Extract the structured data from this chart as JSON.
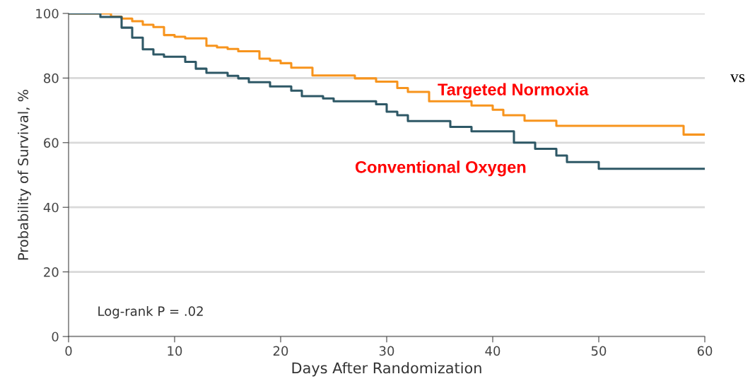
{
  "chart_data": {
    "type": "step",
    "xlabel": "Days After Randomization",
    "ylabel": "Probability of Survival, %",
    "xlim": [
      0,
      60
    ],
    "ylim": [
      0,
      100
    ],
    "xticks": [
      0,
      10,
      20,
      30,
      40,
      50,
      60
    ],
    "yticks": [
      0,
      20,
      40,
      60,
      80,
      100
    ],
    "grid": "y",
    "legend": false,
    "series": [
      {
        "name": "Targeted Normoxia",
        "color": "#f7941d",
        "x": [
          0,
          4,
          5,
          6,
          7,
          8,
          9,
          10,
          11,
          13,
          14,
          15,
          16,
          18,
          19,
          20,
          21,
          23,
          27,
          29,
          31,
          32,
          34,
          38,
          40,
          41,
          43,
          46,
          58,
          60
        ],
        "values": [
          100,
          99,
          98.4,
          97.6,
          96.5,
          95.8,
          93.3,
          92.8,
          92.3,
          90,
          89.5,
          89,
          88.3,
          86,
          85.4,
          84.6,
          83.2,
          80.8,
          79.9,
          78.9,
          76.9,
          75.7,
          72.8,
          71.5,
          70.2,
          68.5,
          66.8,
          65.2,
          62.5,
          62.5
        ]
      },
      {
        "name": "Conventional Oxygen",
        "color": "#2e5866",
        "x": [
          0,
          3,
          5,
          6,
          7,
          8,
          9,
          11,
          12,
          13,
          15,
          16,
          17,
          19,
          21,
          22,
          24,
          25,
          29,
          30,
          31,
          32,
          36,
          38,
          42,
          44,
          46,
          47,
          50,
          60
        ],
        "values": [
          100,
          98.9,
          95.6,
          92.5,
          88.9,
          87.3,
          86.6,
          85,
          82.9,
          81.6,
          80.7,
          79.9,
          78.7,
          77.4,
          76.1,
          74.4,
          73.7,
          72.8,
          71.9,
          69.6,
          68.5,
          66.7,
          64.9,
          63.5,
          60,
          58.1,
          56,
          54,
          51.9,
          51.9
        ]
      }
    ],
    "annotations": [
      "Log-rank P = .02",
      "vs"
    ]
  }
}
